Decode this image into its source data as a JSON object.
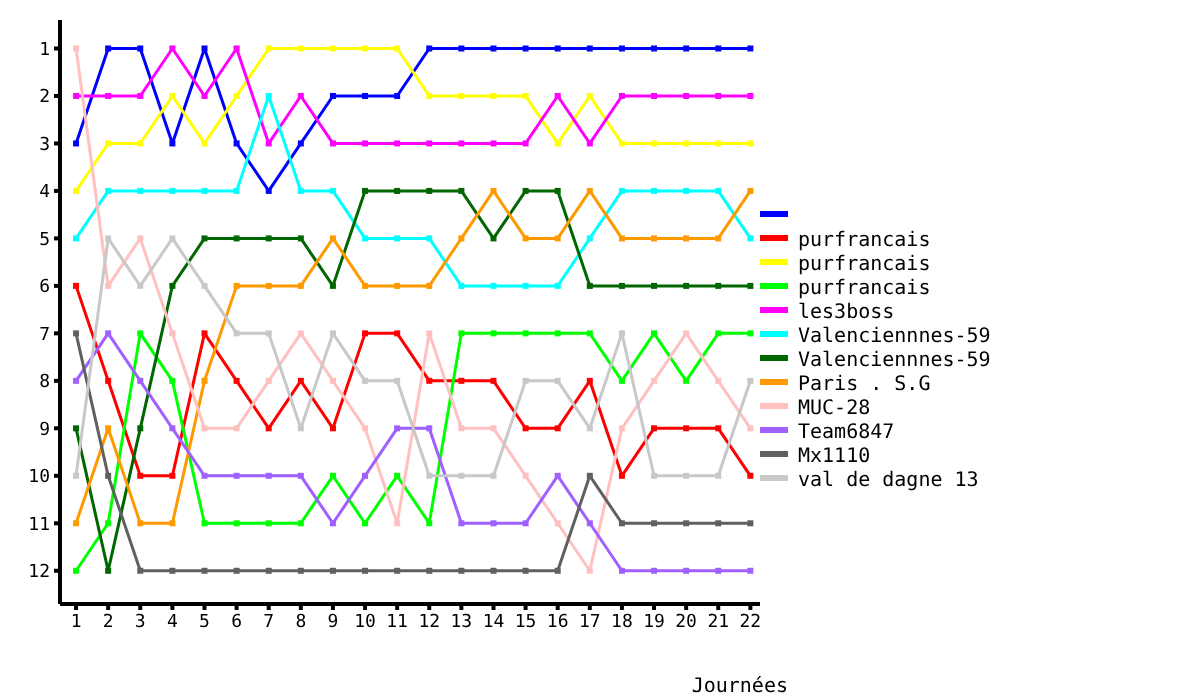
{
  "chart_data": {
    "type": "line",
    "xlabel": "Journées",
    "x": [
      1,
      2,
      3,
      4,
      5,
      6,
      7,
      8,
      9,
      10,
      11,
      12,
      13,
      14,
      15,
      16,
      17,
      18,
      19,
      20,
      21,
      22
    ],
    "xlim": [
      0.5,
      22.3
    ],
    "xticks": [
      1,
      2,
      3,
      4,
      5,
      6,
      7,
      8,
      9,
      10,
      11,
      12,
      13,
      14,
      15,
      16,
      17,
      18,
      19,
      20,
      21,
      22
    ],
    "ylim": [
      12.7,
      0.4
    ],
    "yticks": [
      1,
      2,
      3,
      4,
      5,
      6,
      7,
      8,
      9,
      10,
      11,
      12
    ],
    "grid": false,
    "legend": "right",
    "marker": "square",
    "line_style": "solid",
    "series": [
      {
        "color": "#0000ff",
        "values": [
          3,
          1,
          1,
          3,
          1,
          3,
          4,
          3,
          2,
          2,
          2,
          1,
          1,
          1,
          1,
          1,
          1,
          1,
          1,
          1,
          1,
          1
        ]
      },
      {
        "name": "purfrancais",
        "color": "#ff0000",
        "values": [
          6,
          8,
          10,
          10,
          7,
          8,
          9,
          8,
          9,
          7,
          7,
          8,
          8,
          8,
          9,
          9,
          8,
          10,
          9,
          9,
          9,
          10
        ]
      },
      {
        "name": "purfrancais",
        "color": "#ffff00",
        "values": [
          4,
          3,
          3,
          2,
          3,
          2,
          1,
          1,
          1,
          1,
          1,
          2,
          2,
          2,
          2,
          3,
          2,
          3,
          3,
          3,
          3,
          3
        ]
      },
      {
        "name": "purfrancais",
        "color": "#00ff00",
        "values": [
          12,
          11,
          7,
          8,
          11,
          11,
          11,
          11,
          10,
          11,
          10,
          11,
          7,
          7,
          7,
          7,
          7,
          8,
          7,
          8,
          7,
          7
        ]
      },
      {
        "name": "les3boss",
        "color": "#ff00ff",
        "values": [
          2,
          2,
          2,
          1,
          2,
          1,
          3,
          2,
          3,
          3,
          3,
          3,
          3,
          3,
          3,
          2,
          3,
          2,
          2,
          2,
          2,
          2
        ]
      },
      {
        "name": "Valenciennnes-59",
        "color": "#00ffff",
        "values": [
          5,
          4,
          4,
          4,
          4,
          4,
          2,
          4,
          4,
          5,
          5,
          5,
          6,
          6,
          6,
          6,
          5,
          4,
          4,
          4,
          4,
          5
        ]
      },
      {
        "name": "Valenciennnes-59",
        "color": "#006600",
        "values": [
          9,
          12,
          9,
          6,
          5,
          5,
          5,
          5,
          6,
          4,
          4,
          4,
          4,
          5,
          4,
          4,
          6,
          6,
          6,
          6,
          6,
          6
        ]
      },
      {
        "name": "Paris . S.G",
        "color": "#ff9900",
        "values": [
          11,
          9,
          11,
          11,
          8,
          6,
          6,
          6,
          5,
          6,
          6,
          6,
          5,
          4,
          5,
          5,
          4,
          5,
          5,
          5,
          5,
          4
        ]
      },
      {
        "name": "MUC-28",
        "color": "#ffc0c0",
        "values": [
          1,
          6,
          5,
          7,
          9,
          9,
          8,
          7,
          8,
          9,
          11,
          7,
          9,
          9,
          10,
          11,
          12,
          9,
          8,
          7,
          8,
          9
        ]
      },
      {
        "name": "Team6847",
        "color": "#a060ff",
        "values": [
          8,
          7,
          8,
          9,
          10,
          10,
          10,
          10,
          11,
          10,
          9,
          9,
          11,
          11,
          11,
          10,
          11,
          12,
          12,
          12,
          12,
          12
        ]
      },
      {
        "name": "Mx1110",
        "color": "#606060",
        "values": [
          7,
          10,
          12,
          12,
          12,
          12,
          12,
          12,
          12,
          12,
          12,
          12,
          12,
          12,
          12,
          12,
          10,
          11,
          11,
          11,
          11,
          11
        ]
      },
      {
        "name": "val de dagne 13",
        "color": "#c8c8c8",
        "values": [
          10,
          5,
          6,
          5,
          6,
          7,
          7,
          9,
          7,
          8,
          8,
          10,
          10,
          10,
          8,
          8,
          9,
          7,
          10,
          10,
          10,
          8
        ]
      }
    ]
  }
}
